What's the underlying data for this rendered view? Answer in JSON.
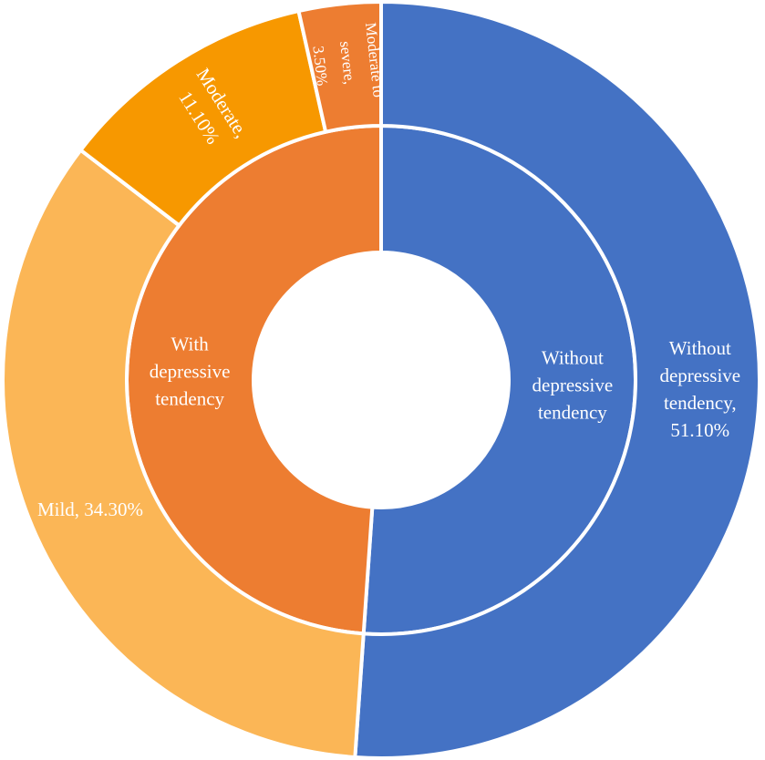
{
  "chart_data": {
    "type": "donut",
    "rings": [
      {
        "categories": [
          "Without depressive tendency",
          "With depressive tendency"
        ],
        "values": [
          51.1,
          48.9
        ],
        "colors": [
          "#4472c4",
          "#ed7d31"
        ]
      },
      {
        "values": [
          51.1,
          34.3,
          11.1,
          3.5
        ],
        "value_labels": [
          "Without depressive tendency, 51.10%",
          "Mild, 34.30%",
          "Moderate, 11.10%",
          "Moderate to severe, 3.50%"
        ],
        "colors": [
          "#4472c4",
          "#fbb656",
          "#f79800",
          "#ed7d31"
        ]
      }
    ]
  }
}
